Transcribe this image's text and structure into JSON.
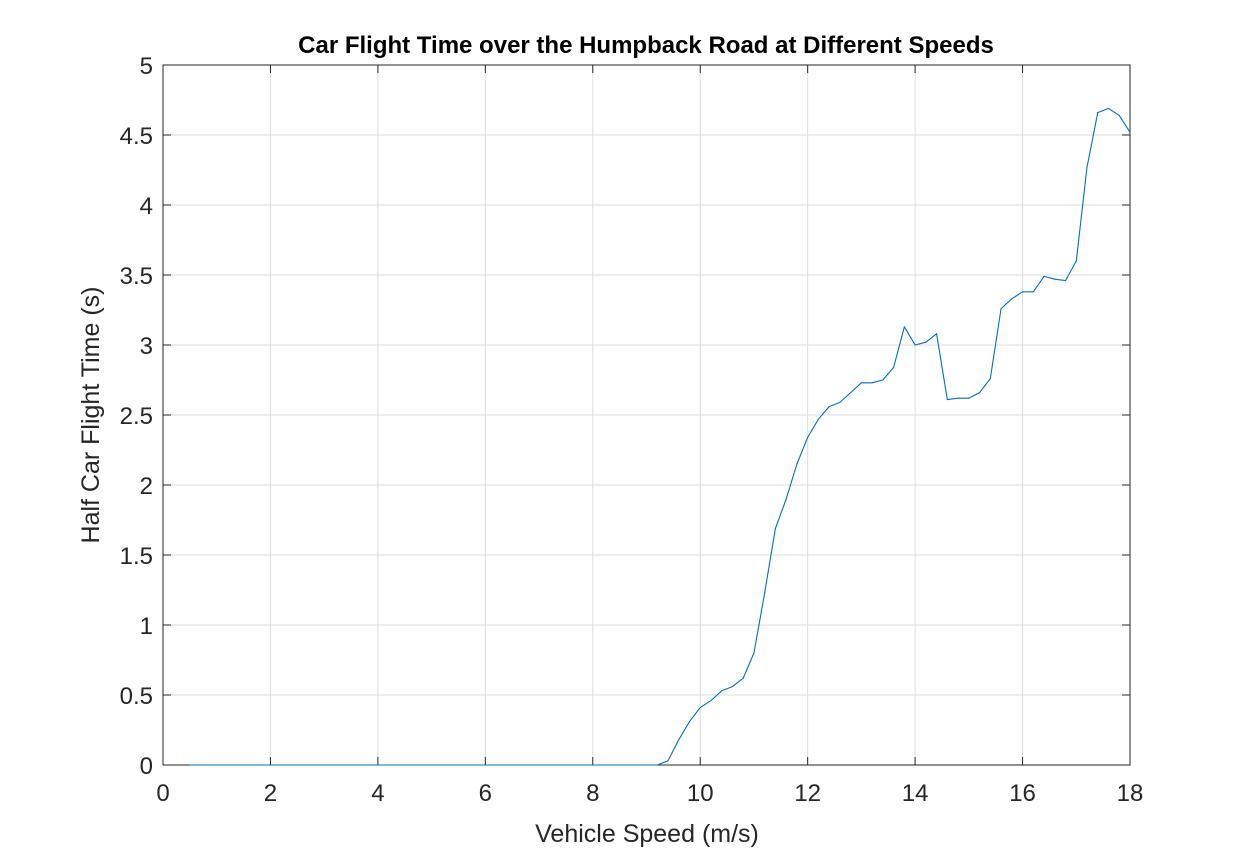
{
  "chart_data": {
    "type": "line",
    "title": "Car Flight Time over the Humpback Road at Different Speeds",
    "xlabel": "Vehicle Speed (m/s)",
    "ylabel": "Half Car Flight Time (s)",
    "xlim": [
      0,
      18
    ],
    "ylim": [
      0,
      5
    ],
    "xticks": [
      0,
      2,
      4,
      6,
      8,
      10,
      12,
      14,
      16,
      18
    ],
    "yticks": [
      0,
      0.5,
      1,
      1.5,
      2,
      2.5,
      3,
      3.5,
      4,
      4.5,
      5
    ],
    "grid": true,
    "series": [
      {
        "color": "#0072BD",
        "x": [
          0.5,
          1.0,
          2.0,
          3.0,
          4.0,
          5.0,
          6.0,
          7.0,
          8.0,
          9.0,
          9.2,
          9.4,
          9.6,
          9.8,
          10.0,
          10.2,
          10.4,
          10.6,
          10.8,
          11.0,
          11.2,
          11.4,
          11.6,
          11.8,
          12.0,
          12.2,
          12.4,
          12.6,
          12.8,
          13.0,
          13.2,
          13.4,
          13.6,
          13.8,
          14.0,
          14.2,
          14.4,
          14.6,
          14.8,
          15.0,
          15.2,
          15.4,
          15.6,
          15.8,
          16.0,
          16.2,
          16.4,
          16.6,
          16.8,
          17.0,
          17.2,
          17.4,
          17.6,
          17.8,
          18.0
        ],
        "y": [
          0,
          0,
          0,
          0,
          0,
          0,
          0,
          0,
          0,
          0,
          0,
          0.03,
          0.18,
          0.31,
          0.41,
          0.46,
          0.53,
          0.56,
          0.62,
          0.8,
          1.23,
          1.69,
          1.9,
          2.15,
          2.34,
          2.47,
          2.56,
          2.59,
          2.66,
          2.73,
          2.73,
          2.75,
          2.84,
          3.13,
          3.0,
          3.02,
          3.08,
          2.61,
          2.62,
          2.62,
          2.66,
          2.76,
          3.26,
          3.33,
          3.38,
          3.38,
          3.49,
          3.47,
          3.46,
          3.6,
          4.27,
          4.66,
          4.69,
          4.64,
          4.52
        ]
      }
    ]
  }
}
